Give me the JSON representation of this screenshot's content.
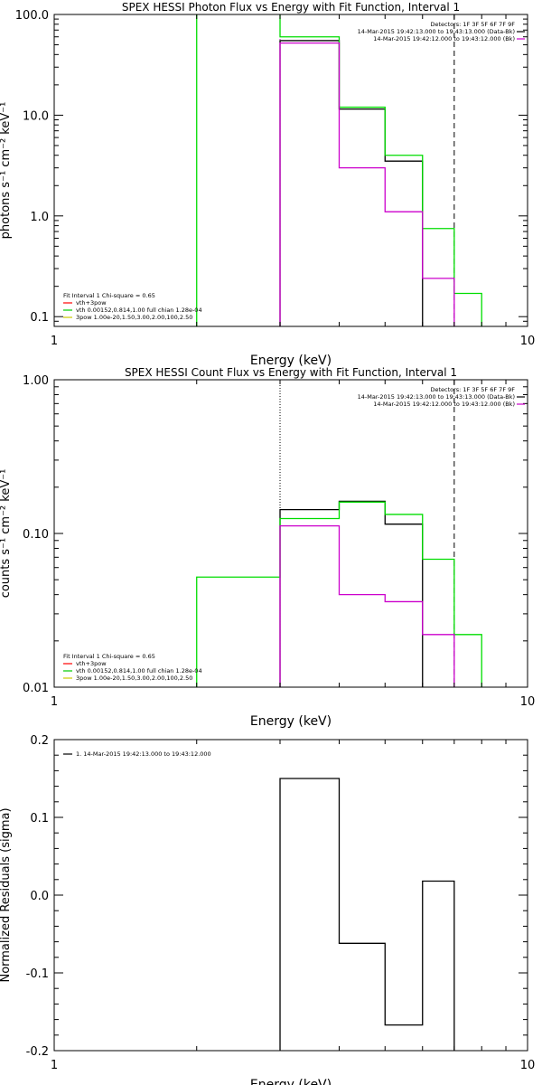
{
  "chart_data": [
    {
      "type": "line",
      "title": "SPEX HESSI Photon Flux vs Energy with Fit Function, Interval 1",
      "xlabel": "Energy (keV)",
      "ylabel": "photons s⁻¹ cm⁻² keV⁻¹",
      "xscale": "log",
      "yscale": "log",
      "xlim": [
        1,
        10
      ],
      "ylim": [
        0.08,
        100
      ],
      "x_ticks": [
        1,
        10
      ],
      "x_tick_labels": [
        "1",
        "10"
      ],
      "y_ticks": [
        0.1,
        1,
        10,
        100
      ],
      "y_tick_labels": [
        "0.1",
        "1.0",
        "10.0",
        "100.0"
      ],
      "vlines": [
        {
          "x": 3.0,
          "style": "dotted",
          "color": "#cc00cc"
        },
        {
          "x": 7.0,
          "style": "dashed",
          "color": "#000000"
        }
      ],
      "info_lines": [
        "Detectors: 1F 3F 5F 6F 7F 9F",
        "14-Mar-2015 19:42:13.000 to 19:43:13.000 (Data-Bk)",
        "14-Mar-2015 19:42:12.000 to 19:43:12.000 (Bk)"
      ],
      "info_colors": [
        "",
        "#000000",
        "#cc00cc"
      ],
      "legend": [
        {
          "text": "Fit Interval 1    Chi-square = 0.65",
          "color": ""
        },
        {
          "text": "vth+3pow",
          "color": "#ff0000"
        },
        {
          "text": "vth 0.00152,0.814,1.00  full chian 1.28e-04",
          "color": "#00cc00"
        },
        {
          "text": "3pow 1.00e-20,1.50,3.00,2.00,100,2.50",
          "color": "#cccc00"
        }
      ],
      "series": [
        {
          "color": "#000000",
          "edges": [
            3,
            4,
            5,
            6
          ],
          "values": [
            55,
            11.5,
            3.5
          ]
        },
        {
          "color": "#00dd00",
          "edges": [
            2,
            3,
            4,
            5,
            6,
            7,
            8
          ],
          "values": [
            300,
            60,
            12,
            4,
            0.75,
            0.17
          ]
        },
        {
          "color": "#cc00cc",
          "edges": [
            3,
            4,
            5,
            6,
            7
          ],
          "values": [
            52,
            3,
            1.1,
            0.24
          ]
        }
      ]
    },
    {
      "type": "line",
      "title": "SPEX HESSI Count Flux vs Energy with Fit Function, Interval 1",
      "xlabel": "Energy (keV)",
      "ylabel": "counts s⁻¹ cm⁻² keV⁻¹",
      "xscale": "log",
      "yscale": "log",
      "xlim": [
        1,
        10
      ],
      "ylim": [
        0.01,
        1
      ],
      "x_ticks": [
        1,
        10
      ],
      "x_tick_labels": [
        "1",
        "10"
      ],
      "y_ticks": [
        0.01,
        0.1,
        1
      ],
      "y_tick_labels": [
        "0.01",
        "0.10",
        "1.00"
      ],
      "vlines": [
        {
          "x": 3.0,
          "style": "dotted",
          "color": "#000000"
        },
        {
          "x": 7.0,
          "style": "dashed",
          "color": "#000000"
        }
      ],
      "info_lines": [
        "Detectors: 1F 3F 5F 6F 7F 9F",
        "14-Mar-2015 19:42:13.000 to 19:43:13.000 (Data-Bk)",
        "14-Mar-2015 19:42:12.000 to 19:43:12.000 (Bk)"
      ],
      "info_colors": [
        "",
        "#000000",
        "#cc00cc"
      ],
      "legend": [
        {
          "text": "Fit Interval 1    Chi-square = 0.65",
          "color": ""
        },
        {
          "text": "vth+3pow",
          "color": "#ff0000"
        },
        {
          "text": "vth 0.00152,0.814,1.00  full chian 1.28e-04",
          "color": "#00cc00"
        },
        {
          "text": "3pow 1.00e-20,1.50,3.00,2.00,100,2.50",
          "color": "#cccc00"
        }
      ],
      "series": [
        {
          "color": "#000000",
          "edges": [
            3,
            4,
            5,
            6
          ],
          "values": [
            0.143,
            0.162,
            0.115
          ]
        },
        {
          "color": "#00dd00",
          "edges": [
            2,
            3,
            4,
            5,
            6,
            7,
            8
          ],
          "values": [
            0.052,
            0.125,
            0.16,
            0.133,
            0.068,
            0.022
          ]
        },
        {
          "color": "#cc00cc",
          "edges": [
            3,
            4,
            5,
            6,
            7
          ],
          "values": [
            0.112,
            0.04,
            0.036,
            0.022
          ]
        }
      ]
    },
    {
      "type": "line",
      "title": "",
      "xlabel": "Energy (keV)",
      "ylabel": "Normalized Residuals (sigma)",
      "xscale": "log",
      "yscale": "linear",
      "xlim": [
        1,
        10
      ],
      "ylim": [
        -0.2,
        0.2
      ],
      "x_ticks": [
        1,
        10
      ],
      "x_tick_labels": [
        "1",
        "10"
      ],
      "y_ticks": [
        -0.2,
        -0.1,
        0.0,
        0.1,
        0.2
      ],
      "y_tick_labels": [
        "-0.2",
        "-0.1",
        "0.0",
        "0.1",
        "0.2"
      ],
      "vlines": [],
      "info_lines": [],
      "info_colors": [],
      "legend": [
        {
          "text": "1. 14-Mar-2015 19:42:13.000 to 19:43:12.000",
          "color": "#000000"
        }
      ],
      "series": [
        {
          "color": "#000000",
          "edges": [
            3,
            4,
            5,
            6,
            7
          ],
          "values": [
            0.15,
            -0.062,
            -0.167,
            0.018
          ],
          "closed": true
        }
      ]
    }
  ]
}
